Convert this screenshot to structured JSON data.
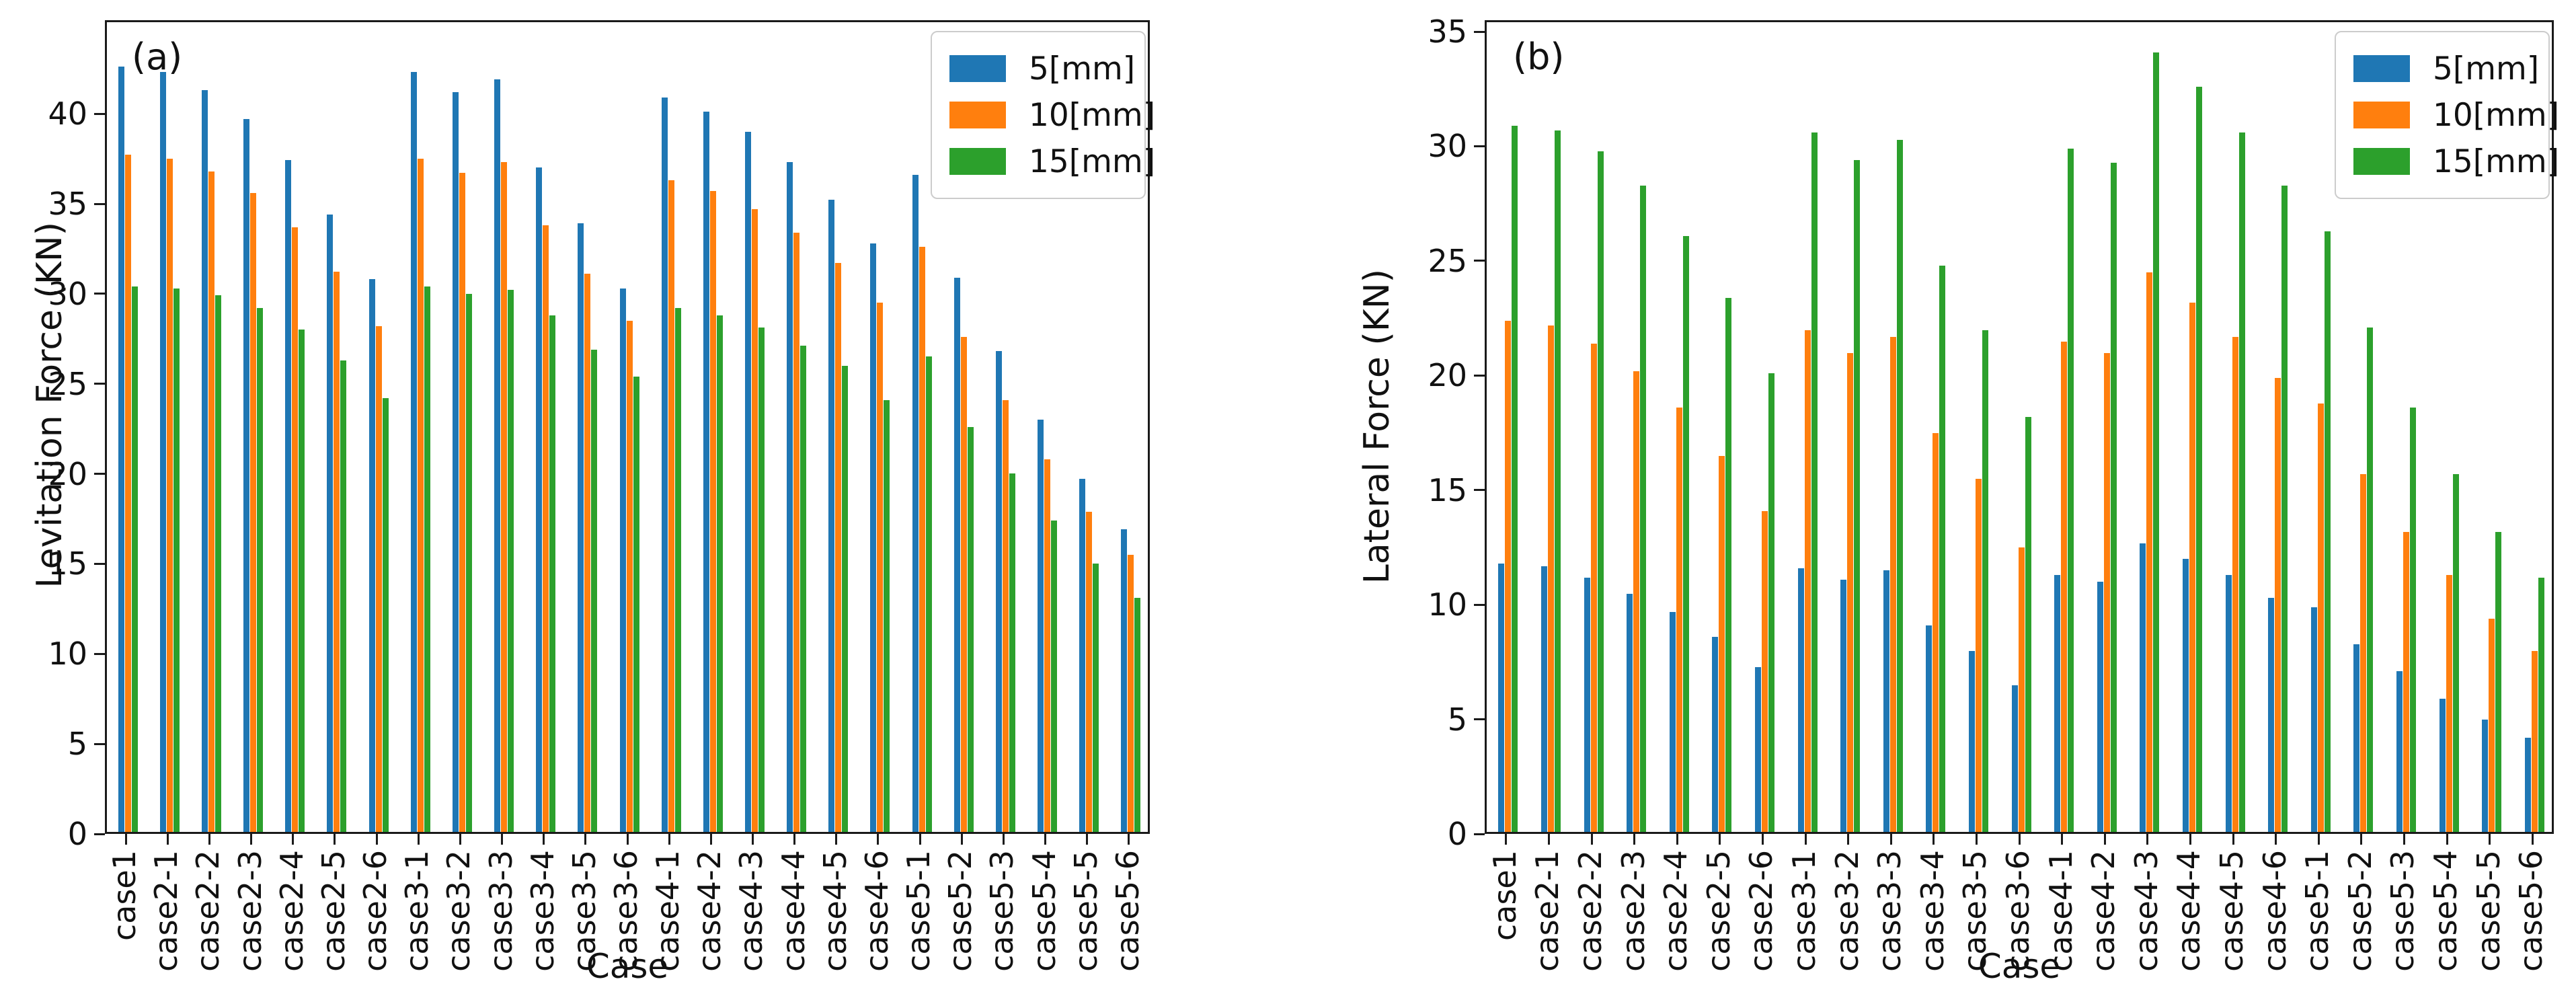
{
  "figure": {
    "background": "#ffffff",
    "panels": [
      "(a)",
      "(b)"
    ]
  },
  "colors": {
    "series_5mm": "#1f77b4",
    "series_10mm": "#ff7f0e",
    "series_15mm": "#2ca02c",
    "axis": "#1a1a1a",
    "legend_border": "#cccccc"
  },
  "chart_data": [
    {
      "type": "bar",
      "panel_label": "(a)",
      "xlabel": "Case",
      "ylabel": "Levitation Force (KN)",
      "ylim": [
        0,
        45.2
      ],
      "yticks": [
        0,
        5,
        10,
        15,
        20,
        25,
        30,
        35,
        40
      ],
      "grid": false,
      "legend_position": "upper right",
      "categories": [
        "case1",
        "case2-1",
        "case2-2",
        "case2-3",
        "case2-4",
        "case2-5",
        "case2-6",
        "case3-1",
        "case3-2",
        "case3-3",
        "case3-4",
        "case3-5",
        "case3-6",
        "case4-1",
        "case4-2",
        "case4-3",
        "case4-4",
        "case4-5",
        "case4-6",
        "case5-1",
        "case5-2",
        "case5-3",
        "case5-4",
        "case5-5",
        "case5-6"
      ],
      "series": [
        {
          "name": "5[mm]",
          "color": "#1f77b4",
          "values": [
            42.5,
            42.2,
            41.2,
            39.6,
            37.3,
            34.3,
            30.7,
            42.2,
            41.1,
            41.8,
            36.9,
            33.8,
            30.2,
            40.8,
            40.0,
            38.9,
            37.2,
            35.1,
            32.7,
            36.5,
            30.8,
            26.7,
            22.9,
            19.6,
            16.8
          ]
        },
        {
          "name": "10[mm]",
          "color": "#ff7f0e",
          "values": [
            37.6,
            37.4,
            36.7,
            35.5,
            33.6,
            31.1,
            28.1,
            37.4,
            36.6,
            37.2,
            33.7,
            31.0,
            28.4,
            36.2,
            35.6,
            34.6,
            33.3,
            31.6,
            29.4,
            32.5,
            27.5,
            24.0,
            20.7,
            17.8,
            15.4
          ]
        },
        {
          "name": "15[mm]",
          "color": "#2ca02c",
          "values": [
            30.3,
            30.2,
            29.8,
            29.1,
            27.9,
            26.2,
            24.1,
            30.3,
            29.9,
            30.1,
            28.7,
            26.8,
            25.3,
            29.1,
            28.7,
            28.0,
            27.0,
            25.9,
            24.0,
            26.4,
            22.5,
            19.9,
            17.3,
            14.9,
            13.0
          ]
        }
      ]
    },
    {
      "type": "bar",
      "panel_label": "(b)",
      "xlabel": "Case",
      "ylabel": "Lateral Force (KN)",
      "ylim": [
        0,
        35.5
      ],
      "yticks": [
        0,
        5,
        10,
        15,
        20,
        25,
        30,
        35
      ],
      "grid": false,
      "legend_position": "upper right",
      "categories": [
        "case1",
        "case2-1",
        "case2-2",
        "case2-3",
        "case2-4",
        "case2-5",
        "case2-6",
        "case3-1",
        "case3-2",
        "case3-3",
        "case3-4",
        "case3-5",
        "case3-6",
        "case4-1",
        "case4-2",
        "case4-3",
        "case4-4",
        "case4-5",
        "case4-6",
        "case5-1",
        "case5-2",
        "case5-3",
        "case5-4",
        "case5-5",
        "case5-6"
      ],
      "series": [
        {
          "name": "5[mm]",
          "color": "#1f77b4",
          "values": [
            11.7,
            11.6,
            11.1,
            10.4,
            9.6,
            8.5,
            7.2,
            11.5,
            11.0,
            11.4,
            9.0,
            7.9,
            6.4,
            11.2,
            10.9,
            12.6,
            11.9,
            11.2,
            10.2,
            9.8,
            8.2,
            7.0,
            5.8,
            4.9,
            4.1
          ]
        },
        {
          "name": "10[mm]",
          "color": "#ff7f0e",
          "values": [
            22.3,
            22.1,
            21.3,
            20.1,
            18.5,
            16.4,
            14.0,
            21.9,
            20.9,
            21.6,
            17.4,
            15.4,
            12.4,
            21.4,
            20.9,
            24.4,
            23.1,
            21.6,
            19.8,
            18.7,
            15.6,
            13.1,
            11.2,
            9.3,
            7.9
          ]
        },
        {
          "name": "15[mm]",
          "color": "#2ca02c",
          "values": [
            30.8,
            30.6,
            29.7,
            28.2,
            26.0,
            23.3,
            20.0,
            30.5,
            29.3,
            30.2,
            24.7,
            21.9,
            18.1,
            29.8,
            29.2,
            34.0,
            32.5,
            30.5,
            28.2,
            26.2,
            22.0,
            18.5,
            15.6,
            13.1,
            11.1
          ]
        }
      ]
    }
  ]
}
